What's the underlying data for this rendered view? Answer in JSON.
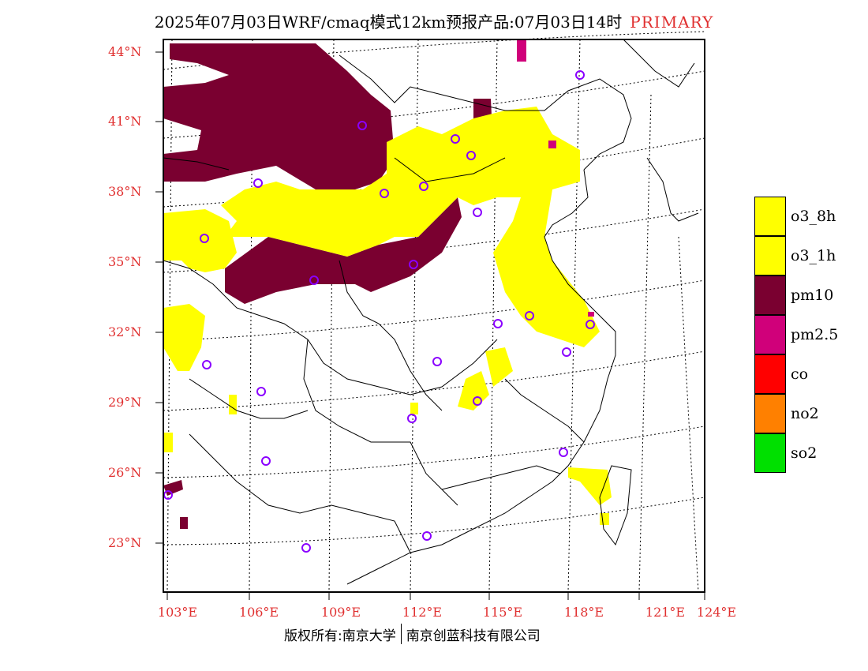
{
  "title": "2025年07月03日WRF/cmaq模式12km预报产品:07月03日14时",
  "primary_label": "PRIMARY",
  "lat_labels": [
    "44°N",
    "41°N",
    "38°N",
    "35°N",
    "32°N",
    "29°N",
    "26°N",
    "23°N"
  ],
  "lon_labels": [
    "103°E",
    "106°E",
    "109°E",
    "112°E",
    "115°E",
    "118°E",
    "121°E",
    "124°E"
  ],
  "legend": [
    {
      "label": "o3_8h",
      "color": "#ffff00"
    },
    {
      "label": "o3_1h",
      "color": "#ffff00"
    },
    {
      "label": "pm10",
      "color": "#7a0030"
    },
    {
      "label": "pm2.5",
      "color": "#d0007a"
    },
    {
      "label": "co",
      "color": "#ff0000"
    },
    {
      "label": "no2",
      "color": "#ff8000"
    },
    {
      "label": "so2",
      "color": "#00e000"
    }
  ],
  "footer": {
    "left": "版权所有:南京大学",
    "right": "南京创蓝科技有限公司"
  }
}
